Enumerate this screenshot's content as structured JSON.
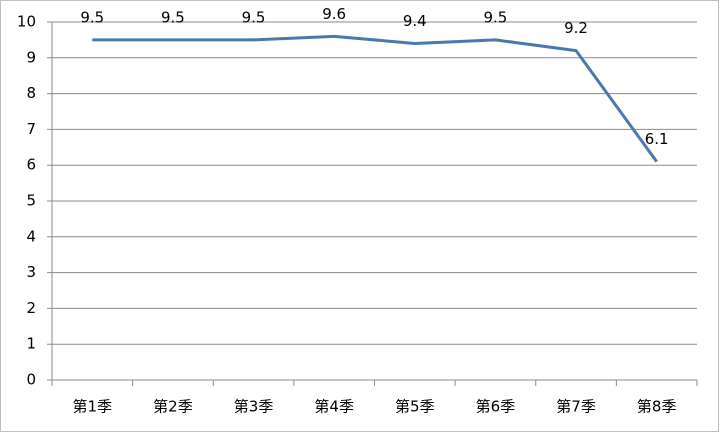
{
  "chart_data": {
    "type": "line",
    "categories": [
      "第1季",
      "第2季",
      "第3季",
      "第4季",
      "第5季",
      "第6季",
      "第7季",
      "第8季"
    ],
    "values": [
      9.5,
      9.5,
      9.5,
      9.6,
      9.4,
      9.5,
      9.2,
      6.1
    ],
    "color": "#4a78ad",
    "ylim": [
      0,
      10
    ],
    "yticks": [
      0,
      1,
      2,
      3,
      4,
      5,
      6,
      7,
      8,
      9,
      10
    ],
    "grid": true
  }
}
